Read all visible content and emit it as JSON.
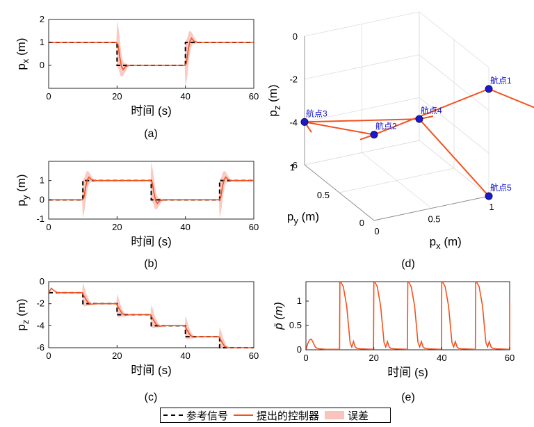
{
  "colors": {
    "reference": "#000000",
    "controller": "#f4511e",
    "error_band": "#f9c4bd",
    "waypoint": "#1a1acc"
  },
  "legend": {
    "reference": "参考信号",
    "controller": "提出的控制器",
    "error": "误差"
  },
  "chart_data": [
    {
      "id": "a",
      "type": "line",
      "caption": "(a)",
      "xlabel": "时间 (s)",
      "ylabel": "p_x (m)",
      "ylabel_main": "p",
      "ylabel_sub": "x",
      "ylabel_unit": " (m)",
      "xlim": [
        0,
        60
      ],
      "ylim": [
        -1,
        2
      ],
      "xticks": [
        0,
        20,
        40,
        60
      ],
      "yticks": [
        0,
        1,
        2
      ],
      "grid": false,
      "reference": {
        "x": [
          0,
          20,
          20,
          40,
          40,
          60
        ],
        "y": [
          1,
          1,
          0,
          0,
          1,
          1
        ]
      },
      "controller": {
        "x": [
          0,
          19.8,
          20.3,
          20.8,
          21.3,
          21.8,
          22.5,
          23.5,
          25,
          39.8,
          40.3,
          40.8,
          41.3,
          41.8,
          42.5,
          43.5,
          45,
          60
        ],
        "y": [
          1,
          1,
          0.9,
          0.35,
          -0.05,
          -0.18,
          -0.05,
          0,
          0,
          0,
          0.1,
          0.65,
          1.05,
          1.18,
          1.05,
          1,
          1,
          1
        ]
      },
      "error_band": {
        "x": [
          19.8,
          20,
          20.5,
          21,
          21.5,
          22,
          23,
          24,
          39.8,
          40,
          40.5,
          41,
          41.5,
          42,
          43,
          44
        ],
        "half_width": [
          0,
          1.0,
          0.85,
          0.65,
          0.4,
          0.25,
          0.08,
          0,
          0,
          1.0,
          0.85,
          0.65,
          0.4,
          0.25,
          0.08,
          0
        ]
      }
    },
    {
      "id": "b",
      "type": "line",
      "caption": "(b)",
      "xlabel": "时间 (s)",
      "ylabel": "p_y (m)",
      "ylabel_main": "p",
      "ylabel_sub": "y",
      "ylabel_unit": " (m)",
      "xlim": [
        0,
        60
      ],
      "ylim": [
        -1,
        2
      ],
      "xticks": [
        0,
        20,
        40,
        60
      ],
      "yticks": [
        -1,
        0,
        1
      ],
      "grid": false,
      "reference": {
        "x": [
          0,
          10,
          10,
          30,
          30,
          50,
          50,
          60
        ],
        "y": [
          0,
          0,
          1,
          1,
          0,
          0,
          1,
          1
        ]
      },
      "controller": {
        "x": [
          0,
          9.8,
          10.3,
          10.8,
          11.3,
          11.8,
          12.5,
          13.5,
          15,
          29.8,
          30.3,
          30.8,
          31.3,
          31.8,
          32.5,
          33.5,
          35,
          49.8,
          50.3,
          50.8,
          51.3,
          51.8,
          52.5,
          53.5,
          55,
          60
        ],
        "y": [
          0,
          0,
          0.1,
          0.65,
          1.05,
          1.18,
          1.05,
          1,
          1,
          1,
          0.9,
          0.35,
          -0.05,
          -0.18,
          -0.05,
          0,
          0,
          0,
          0.1,
          0.65,
          1.05,
          1.18,
          1.05,
          1,
          1,
          1
        ]
      },
      "error_band": {
        "x": [
          9.8,
          10,
          10.5,
          11,
          11.5,
          12,
          13,
          14,
          29.8,
          30,
          30.5,
          31,
          31.5,
          32,
          33,
          34,
          49.8,
          50,
          50.5,
          51,
          51.5,
          52,
          53,
          54
        ],
        "half_width": [
          0,
          1.0,
          0.85,
          0.65,
          0.4,
          0.25,
          0.08,
          0,
          0,
          1.0,
          0.85,
          0.65,
          0.4,
          0.25,
          0.08,
          0,
          0,
          1.0,
          0.85,
          0.65,
          0.4,
          0.25,
          0.08,
          0
        ]
      }
    },
    {
      "id": "c",
      "type": "line",
      "caption": "(c)",
      "xlabel": "时间 (s)",
      "ylabel": "p_z (m)",
      "ylabel_main": "p",
      "ylabel_sub": "z",
      "ylabel_unit": " (m)",
      "xlim": [
        0,
        60
      ],
      "ylim": [
        -6,
        0
      ],
      "xticks": [
        0,
        20,
        40,
        60
      ],
      "yticks": [
        0,
        -2,
        -4,
        -6
      ],
      "grid": false,
      "reference": {
        "x": [
          0,
          10,
          10,
          20,
          20,
          30,
          30,
          40,
          40,
          50,
          50,
          60
        ],
        "y": [
          -1,
          -1,
          -2,
          -2,
          -3,
          -3,
          -4,
          -4,
          -5,
          -5,
          -6,
          -6
        ]
      },
      "controller": {
        "x": [
          0,
          0.8,
          1.5,
          2.5,
          4,
          9.8,
          10.5,
          11.5,
          12.5,
          14,
          19.8,
          20.5,
          21.5,
          22.5,
          24,
          29.8,
          30.5,
          31.5,
          32.5,
          34,
          39.8,
          40.5,
          41.5,
          42.5,
          44,
          49.8,
          50.5,
          51.5,
          52.5,
          54,
          60
        ],
        "y": [
          -1,
          -0.6,
          -0.8,
          -1,
          -1,
          -1,
          -1.4,
          -1.9,
          -2.05,
          -2,
          -2,
          -2.4,
          -2.9,
          -3.05,
          -3,
          -3,
          -3.4,
          -3.9,
          -4.05,
          -4,
          -4,
          -4.4,
          -4.9,
          -5.05,
          -5,
          -5,
          -5.4,
          -5.9,
          -6.05,
          -6,
          -6
        ]
      },
      "error_band": {
        "x": [
          9.8,
          10,
          10.5,
          11,
          12,
          13,
          19.8,
          20,
          20.5,
          21,
          22,
          23,
          29.8,
          30,
          30.5,
          31,
          32,
          33,
          39.8,
          40,
          40.5,
          41,
          42,
          43,
          49.8,
          50,
          50.5,
          51,
          52,
          53
        ],
        "half_width": [
          0,
          1.0,
          0.85,
          0.55,
          0.2,
          0,
          0,
          1.0,
          0.85,
          0.55,
          0.2,
          0,
          0,
          1.0,
          0.85,
          0.55,
          0.2,
          0,
          0,
          1.0,
          0.85,
          0.55,
          0.2,
          0,
          0,
          1.0,
          0.85,
          0.55,
          0.2,
          0
        ]
      }
    },
    {
      "id": "d",
      "type": "line3d",
      "caption": "(d)",
      "xlabel": "p_x (m)",
      "ylabel": "p_y (m)",
      "zlabel": "p_z (m)",
      "xticks": [
        0,
        0.5,
        1
      ],
      "yticks": [
        0,
        0.5,
        1
      ],
      "zticks": [
        0,
        -2,
        -4,
        -6
      ],
      "xlim": [
        0,
        1
      ],
      "ylim": [
        0,
        1
      ],
      "zlim": [
        -6,
        0
      ],
      "waypoints": [
        {
          "label": "航点1",
          "x": 1,
          "y": 0,
          "z": -1
        },
        {
          "label": "航点2",
          "x": 0,
          "y": 0,
          "z": -2
        },
        {
          "label": "航点3",
          "x": 0,
          "y": 1,
          "z": -4
        },
        {
          "label": "航点4",
          "x": 1,
          "y": 1,
          "z": -5
        },
        {
          "label": "航点5",
          "x": 1,
          "y": 0,
          "z": -6
        }
      ]
    },
    {
      "id": "e",
      "type": "line",
      "caption": "(e)",
      "xlabel": "时间 (s)",
      "ylabel": "p̄ (m)",
      "xlim": [
        0,
        60
      ],
      "ylim": [
        0,
        1.4
      ],
      "xticks": [
        0,
        20,
        40,
        60
      ],
      "yticks": [
        0,
        0.5,
        1
      ],
      "grid": false,
      "series": [
        {
          "x": [
            0,
            0.5,
            1,
            1.5,
            2,
            2.5,
            3,
            4,
            6,
            9.9,
            10,
            10.2,
            11,
            12,
            13,
            13.5,
            14,
            14.5,
            15,
            16,
            19.9,
            20,
            20.2,
            21,
            22,
            23,
            23.5,
            24,
            24.5,
            25,
            26,
            29.9,
            30,
            30.2,
            31,
            32,
            33,
            33.5,
            34,
            34.5,
            35,
            36,
            39.9,
            40,
            40.2,
            41,
            42,
            43,
            43.5,
            44,
            44.5,
            45,
            46,
            49.9,
            50,
            50.2,
            51,
            52,
            53,
            53.5,
            54,
            54.5,
            55,
            56,
            59.9,
            60,
            60
          ],
          "y": [
            0,
            0.12,
            0.2,
            0.22,
            0.17,
            0.09,
            0.04,
            0.02,
            0.01,
            0.01,
            1.42,
            1.42,
            1.3,
            0.9,
            0.15,
            0.06,
            0.17,
            0.06,
            0.03,
            0.02,
            0.01,
            1.42,
            1.42,
            1.3,
            0.9,
            0.15,
            0.06,
            0.17,
            0.06,
            0.03,
            0.02,
            0.01,
            1.42,
            1.42,
            1.3,
            0.9,
            0.15,
            0.06,
            0.17,
            0.06,
            0.03,
            0.02,
            0.01,
            1.42,
            1.42,
            1.3,
            0.9,
            0.15,
            0.06,
            0.17,
            0.06,
            0.03,
            0.02,
            0.01,
            1.42,
            1.42,
            1.3,
            0.9,
            0.15,
            0.06,
            0.17,
            0.06,
            0.03,
            0.02,
            0.01,
            0.01,
            1.0
          ]
        }
      ]
    }
  ]
}
